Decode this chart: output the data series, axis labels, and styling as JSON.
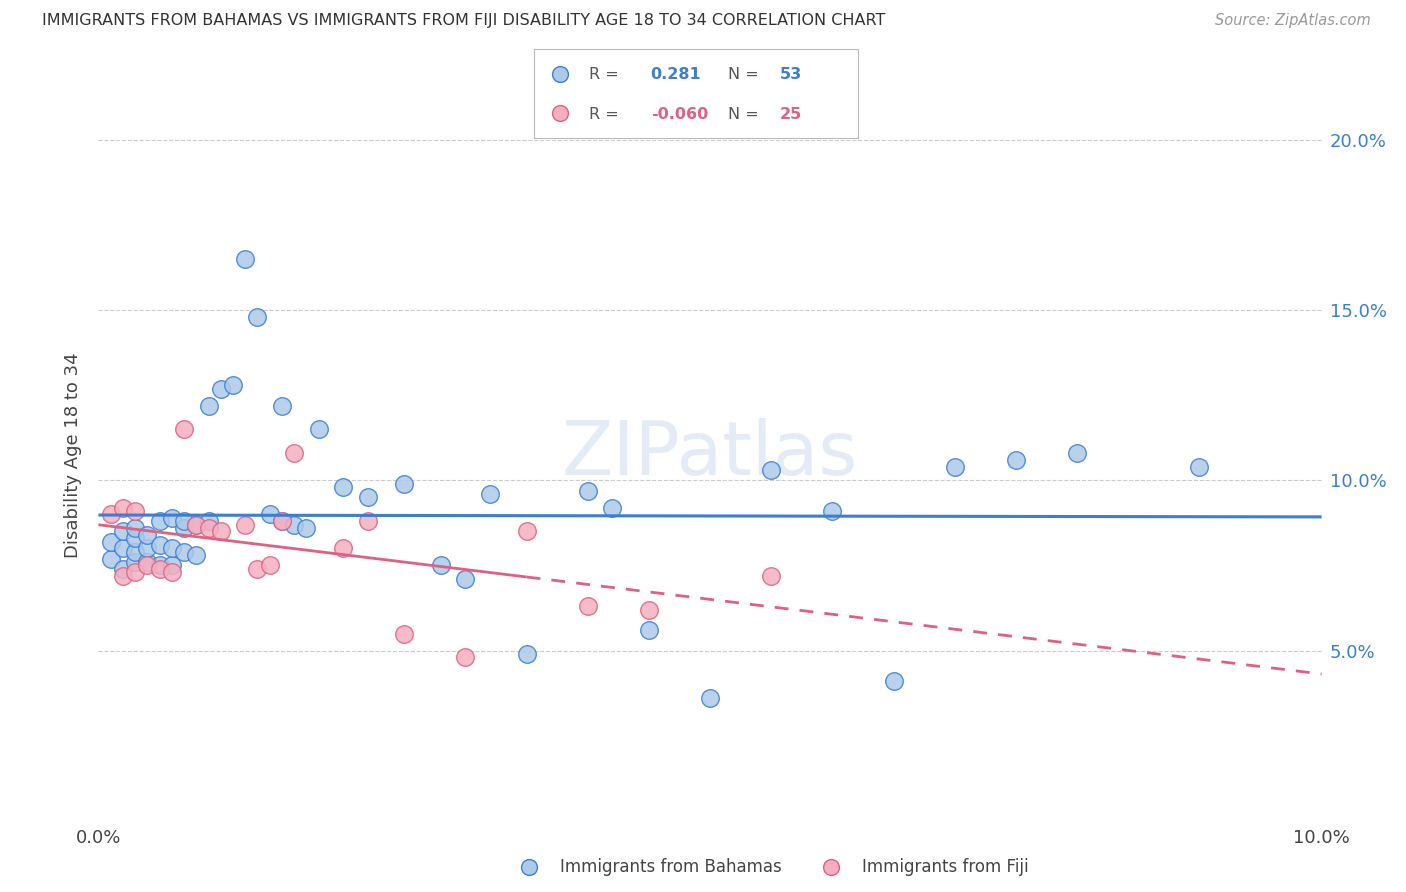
{
  "title": "IMMIGRANTS FROM BAHAMAS VS IMMIGRANTS FROM FIJI DISABILITY AGE 18 TO 34 CORRELATION CHART",
  "source": "Source: ZipAtlas.com",
  "ylabel": "Disability Age 18 to 34",
  "xlim": [
    0.0,
    0.1
  ],
  "ylim": [
    0.0,
    0.215
  ],
  "yticks": [
    0.05,
    0.1,
    0.15,
    0.2
  ],
  "ytick_labels": [
    "5.0%",
    "10.0%",
    "15.0%",
    "20.0%"
  ],
  "xticks": [
    0.0,
    0.02,
    0.04,
    0.06,
    0.08,
    0.1
  ],
  "xtick_labels": [
    "0.0%",
    "",
    "",
    "",
    "",
    "10.0%"
  ],
  "bahamas_color": "#adc9e8",
  "fiji_color": "#f5afc0",
  "line_bahamas_color": "#3a7fd5",
  "line_fiji_color": "#e06080",
  "watermark": "ZIPatlas",
  "bahamas_x": [
    0.001,
    0.001,
    0.002,
    0.002,
    0.002,
    0.003,
    0.003,
    0.003,
    0.003,
    0.004,
    0.004,
    0.004,
    0.005,
    0.005,
    0.005,
    0.006,
    0.006,
    0.006,
    0.007,
    0.007,
    0.007,
    0.008,
    0.008,
    0.009,
    0.009,
    0.01,
    0.011,
    0.012,
    0.013,
    0.014,
    0.015,
    0.015,
    0.016,
    0.017,
    0.018,
    0.02,
    0.022,
    0.025,
    0.028,
    0.03,
    0.032,
    0.035,
    0.04,
    0.042,
    0.045,
    0.05,
    0.055,
    0.06,
    0.065,
    0.07,
    0.075,
    0.08,
    0.09
  ],
  "bahamas_y": [
    0.077,
    0.082,
    0.074,
    0.08,
    0.085,
    0.076,
    0.079,
    0.083,
    0.086,
    0.076,
    0.08,
    0.084,
    0.075,
    0.081,
    0.088,
    0.075,
    0.08,
    0.089,
    0.079,
    0.086,
    0.088,
    0.078,
    0.087,
    0.088,
    0.122,
    0.127,
    0.128,
    0.165,
    0.148,
    0.09,
    0.088,
    0.122,
    0.087,
    0.086,
    0.115,
    0.098,
    0.095,
    0.099,
    0.075,
    0.071,
    0.096,
    0.049,
    0.097,
    0.092,
    0.056,
    0.036,
    0.103,
    0.091,
    0.041,
    0.104,
    0.106,
    0.108,
    0.104
  ],
  "fiji_x": [
    0.001,
    0.002,
    0.002,
    0.003,
    0.003,
    0.004,
    0.005,
    0.006,
    0.007,
    0.008,
    0.009,
    0.01,
    0.012,
    0.013,
    0.014,
    0.015,
    0.016,
    0.02,
    0.022,
    0.025,
    0.03,
    0.035,
    0.04,
    0.045,
    0.055
  ],
  "fiji_y": [
    0.09,
    0.092,
    0.072,
    0.073,
    0.091,
    0.075,
    0.074,
    0.073,
    0.115,
    0.087,
    0.086,
    0.085,
    0.087,
    0.074,
    0.075,
    0.088,
    0.108,
    0.08,
    0.088,
    0.055,
    0.048,
    0.085,
    0.063,
    0.062,
    0.072
  ]
}
